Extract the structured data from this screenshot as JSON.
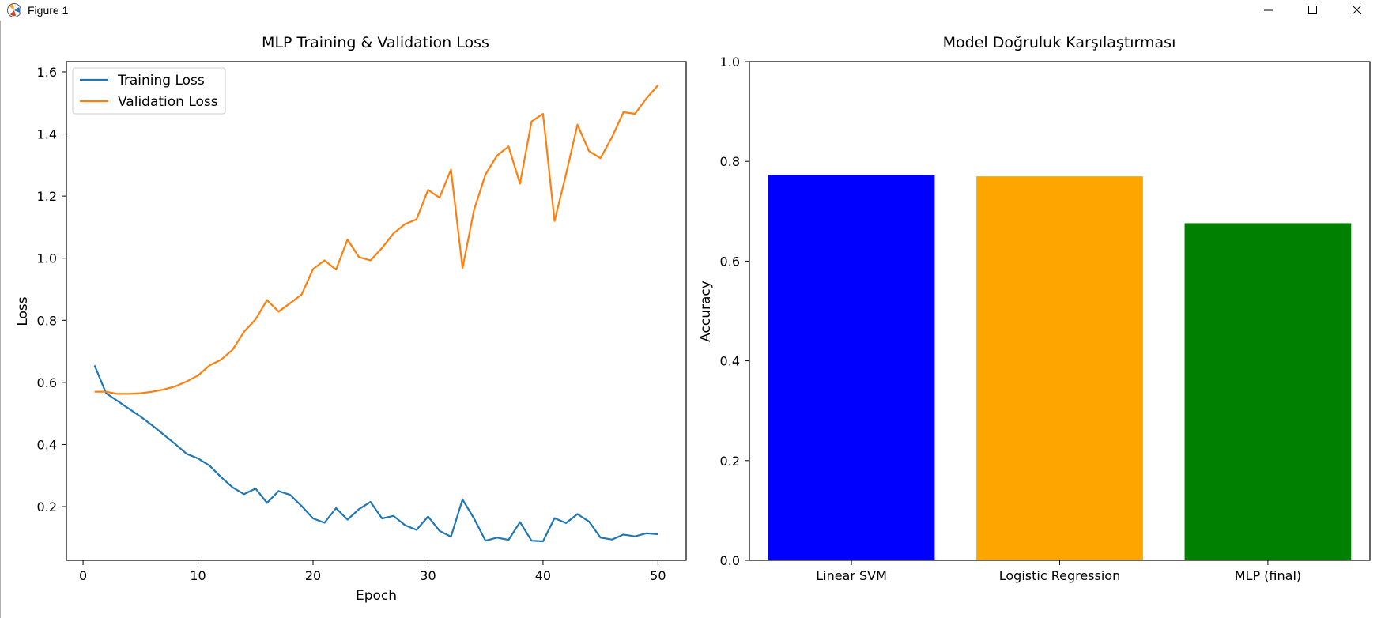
{
  "window": {
    "title": "Figure 1"
  },
  "chart_data": [
    {
      "type": "line",
      "title": "MLP Training & Validation Loss",
      "xlabel": "Epoch",
      "ylabel": "Loss",
      "xlim": [
        -1.45,
        52.45
      ],
      "ylim": [
        0.027,
        1.633
      ],
      "xticks": [
        0,
        10,
        20,
        30,
        40,
        50
      ],
      "yticks": [
        0.2,
        0.4,
        0.6,
        0.8,
        1.0,
        1.2,
        1.4,
        1.6
      ],
      "xtick_labels": [
        "0",
        "10",
        "20",
        "30",
        "40",
        "50"
      ],
      "ytick_labels": [
        "0.2",
        "0.4",
        "0.6",
        "0.8",
        "1.0",
        "1.2",
        "1.4",
        "1.6"
      ],
      "grid": false,
      "legend": "upper left",
      "x": [
        1,
        2,
        3,
        4,
        5,
        6,
        7,
        8,
        9,
        10,
        11,
        12,
        13,
        14,
        15,
        16,
        17,
        18,
        19,
        20,
        21,
        22,
        23,
        24,
        25,
        26,
        27,
        28,
        29,
        30,
        31,
        32,
        33,
        34,
        35,
        36,
        37,
        38,
        39,
        40,
        41,
        42,
        43,
        44,
        45,
        46,
        47,
        48,
        49,
        50
      ],
      "series": [
        {
          "name": "Training Loss",
          "color": "#1f77b4",
          "values": [
            0.655,
            0.565,
            0.54,
            0.515,
            0.49,
            0.462,
            0.432,
            0.402,
            0.37,
            0.355,
            0.332,
            0.295,
            0.262,
            0.24,
            0.258,
            0.212,
            0.25,
            0.238,
            0.202,
            0.162,
            0.148,
            0.195,
            0.158,
            0.192,
            0.215,
            0.162,
            0.17,
            0.14,
            0.125,
            0.168,
            0.122,
            0.103,
            0.223,
            0.162,
            0.09,
            0.1,
            0.093,
            0.15,
            0.09,
            0.088,
            0.163,
            0.147,
            0.176,
            0.152,
            0.1,
            0.094,
            0.11,
            0.104,
            0.114,
            0.111
          ]
        },
        {
          "name": "Validation Loss",
          "color": "#ff7f0e",
          "values": [
            0.57,
            0.57,
            0.563,
            0.563,
            0.565,
            0.57,
            0.577,
            0.587,
            0.603,
            0.622,
            0.655,
            0.673,
            0.705,
            0.763,
            0.803,
            0.865,
            0.828,
            0.855,
            0.883,
            0.965,
            0.993,
            0.963,
            1.06,
            1.003,
            0.993,
            1.033,
            1.08,
            1.11,
            1.125,
            1.22,
            1.195,
            1.285,
            0.968,
            1.155,
            1.27,
            1.33,
            1.36,
            1.24,
            1.44,
            1.465,
            1.12,
            1.27,
            1.43,
            1.345,
            1.322,
            1.39,
            1.47,
            1.465,
            1.515,
            1.557
          ]
        }
      ]
    },
    {
      "type": "bar",
      "title": "Model Doğruluk Karşılaştırması",
      "xlabel": "",
      "ylabel": "Accuracy",
      "ylim": [
        0.0,
        1.0
      ],
      "yticks": [
        0.0,
        0.2,
        0.4,
        0.6,
        0.8,
        1.0
      ],
      "ytick_labels": [
        "0.0",
        "0.2",
        "0.4",
        "0.6",
        "0.8",
        "1.0"
      ],
      "grid": false,
      "categories": [
        "Linear SVM",
        "Logistic Regression",
        "MLP (final)"
      ],
      "values": [
        0.773,
        0.77,
        0.676
      ],
      "colors": [
        "#0000ff",
        "#ffa500",
        "#008000"
      ]
    }
  ]
}
